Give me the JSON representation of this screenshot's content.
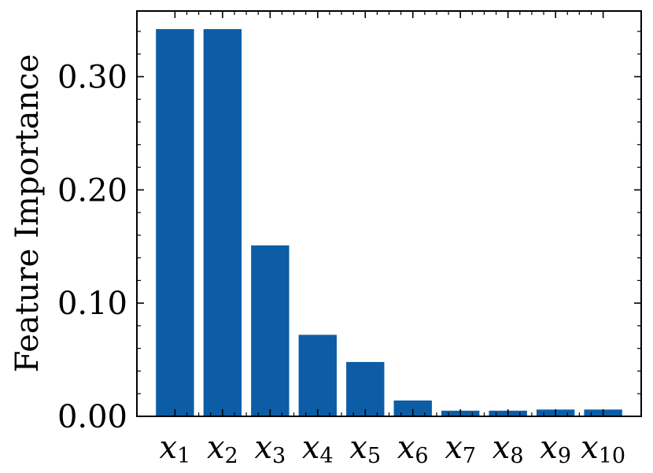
{
  "chart_data": {
    "type": "bar",
    "title": "",
    "xlabel": "",
    "ylabel": "Feature Importance",
    "categories": [
      "x1",
      "x2",
      "x3",
      "x4",
      "x5",
      "x6",
      "x7",
      "x8",
      "x9",
      "x10"
    ],
    "category_labels": [
      {
        "base": "x",
        "sub": "1"
      },
      {
        "base": "x",
        "sub": "2"
      },
      {
        "base": "x",
        "sub": "3"
      },
      {
        "base": "x",
        "sub": "4"
      },
      {
        "base": "x",
        "sub": "5"
      },
      {
        "base": "x",
        "sub": "6"
      },
      {
        "base": "x",
        "sub": "7"
      },
      {
        "base": "x",
        "sub": "8"
      },
      {
        "base": "x",
        "sub": "9"
      },
      {
        "base": "x",
        "sub": "10"
      }
    ],
    "values": [
      0.342,
      0.342,
      0.151,
      0.072,
      0.048,
      0.014,
      0.005,
      0.005,
      0.006,
      0.006
    ],
    "ylim": [
      0,
      0.358
    ],
    "yticks": [
      0.0,
      0.1,
      0.2,
      0.3
    ],
    "ytick_labels": [
      "0.00",
      "0.10",
      "0.20",
      "0.30"
    ],
    "yminor_step": 0.02,
    "grid": false,
    "bar_color": "#0C5DA5"
  }
}
